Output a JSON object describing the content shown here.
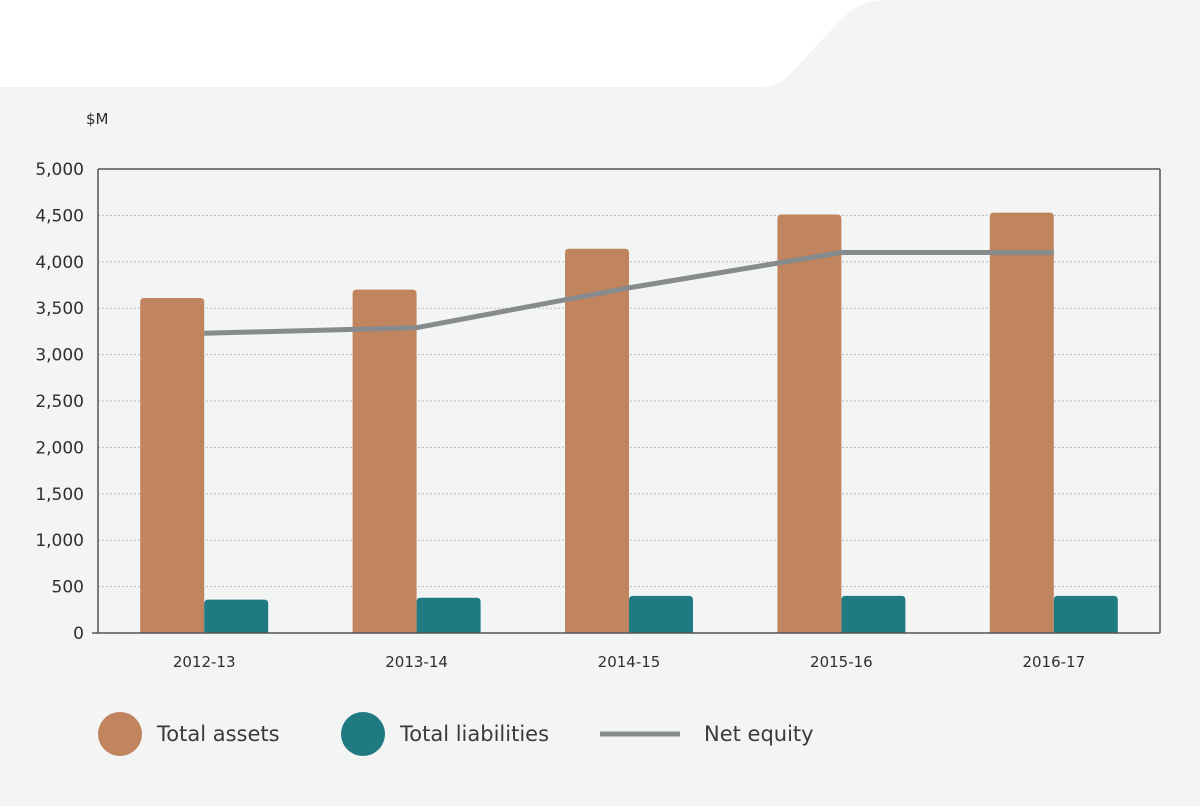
{
  "chart_data": {
    "type": "bar",
    "unit_label": "$M",
    "categories": [
      "2012-13",
      "2013-14",
      "2014-15",
      "2015-16",
      "2016-17"
    ],
    "ylim": [
      0,
      5000
    ],
    "yticks": [
      0,
      500,
      1000,
      1500,
      2000,
      2500,
      3000,
      3500,
      4000,
      4500,
      5000
    ],
    "ytick_labels": [
      "0",
      "500",
      "1,000",
      "1,500",
      "2,000",
      "2,500",
      "3,000",
      "3,500",
      "4,000",
      "4,500",
      "5,000"
    ],
    "grid": true,
    "legend_position": "bottom",
    "series": [
      {
        "name": "Total assets",
        "kind": "bar",
        "color": "#c0855f",
        "values": [
          3610,
          3700,
          4140,
          4510,
          4530
        ]
      },
      {
        "name": "Total liabilities",
        "kind": "bar",
        "color": "#1f7a82",
        "values": [
          360,
          380,
          400,
          400,
          400
        ]
      },
      {
        "name": "Net equity",
        "kind": "line",
        "color": "#888b8d",
        "values": [
          3230,
          3290,
          3720,
          4100,
          4100
        ]
      }
    ]
  },
  "colors": {
    "card_background": "#f3f4f4",
    "axis": "#555555",
    "grid": "#bbbbbb"
  }
}
